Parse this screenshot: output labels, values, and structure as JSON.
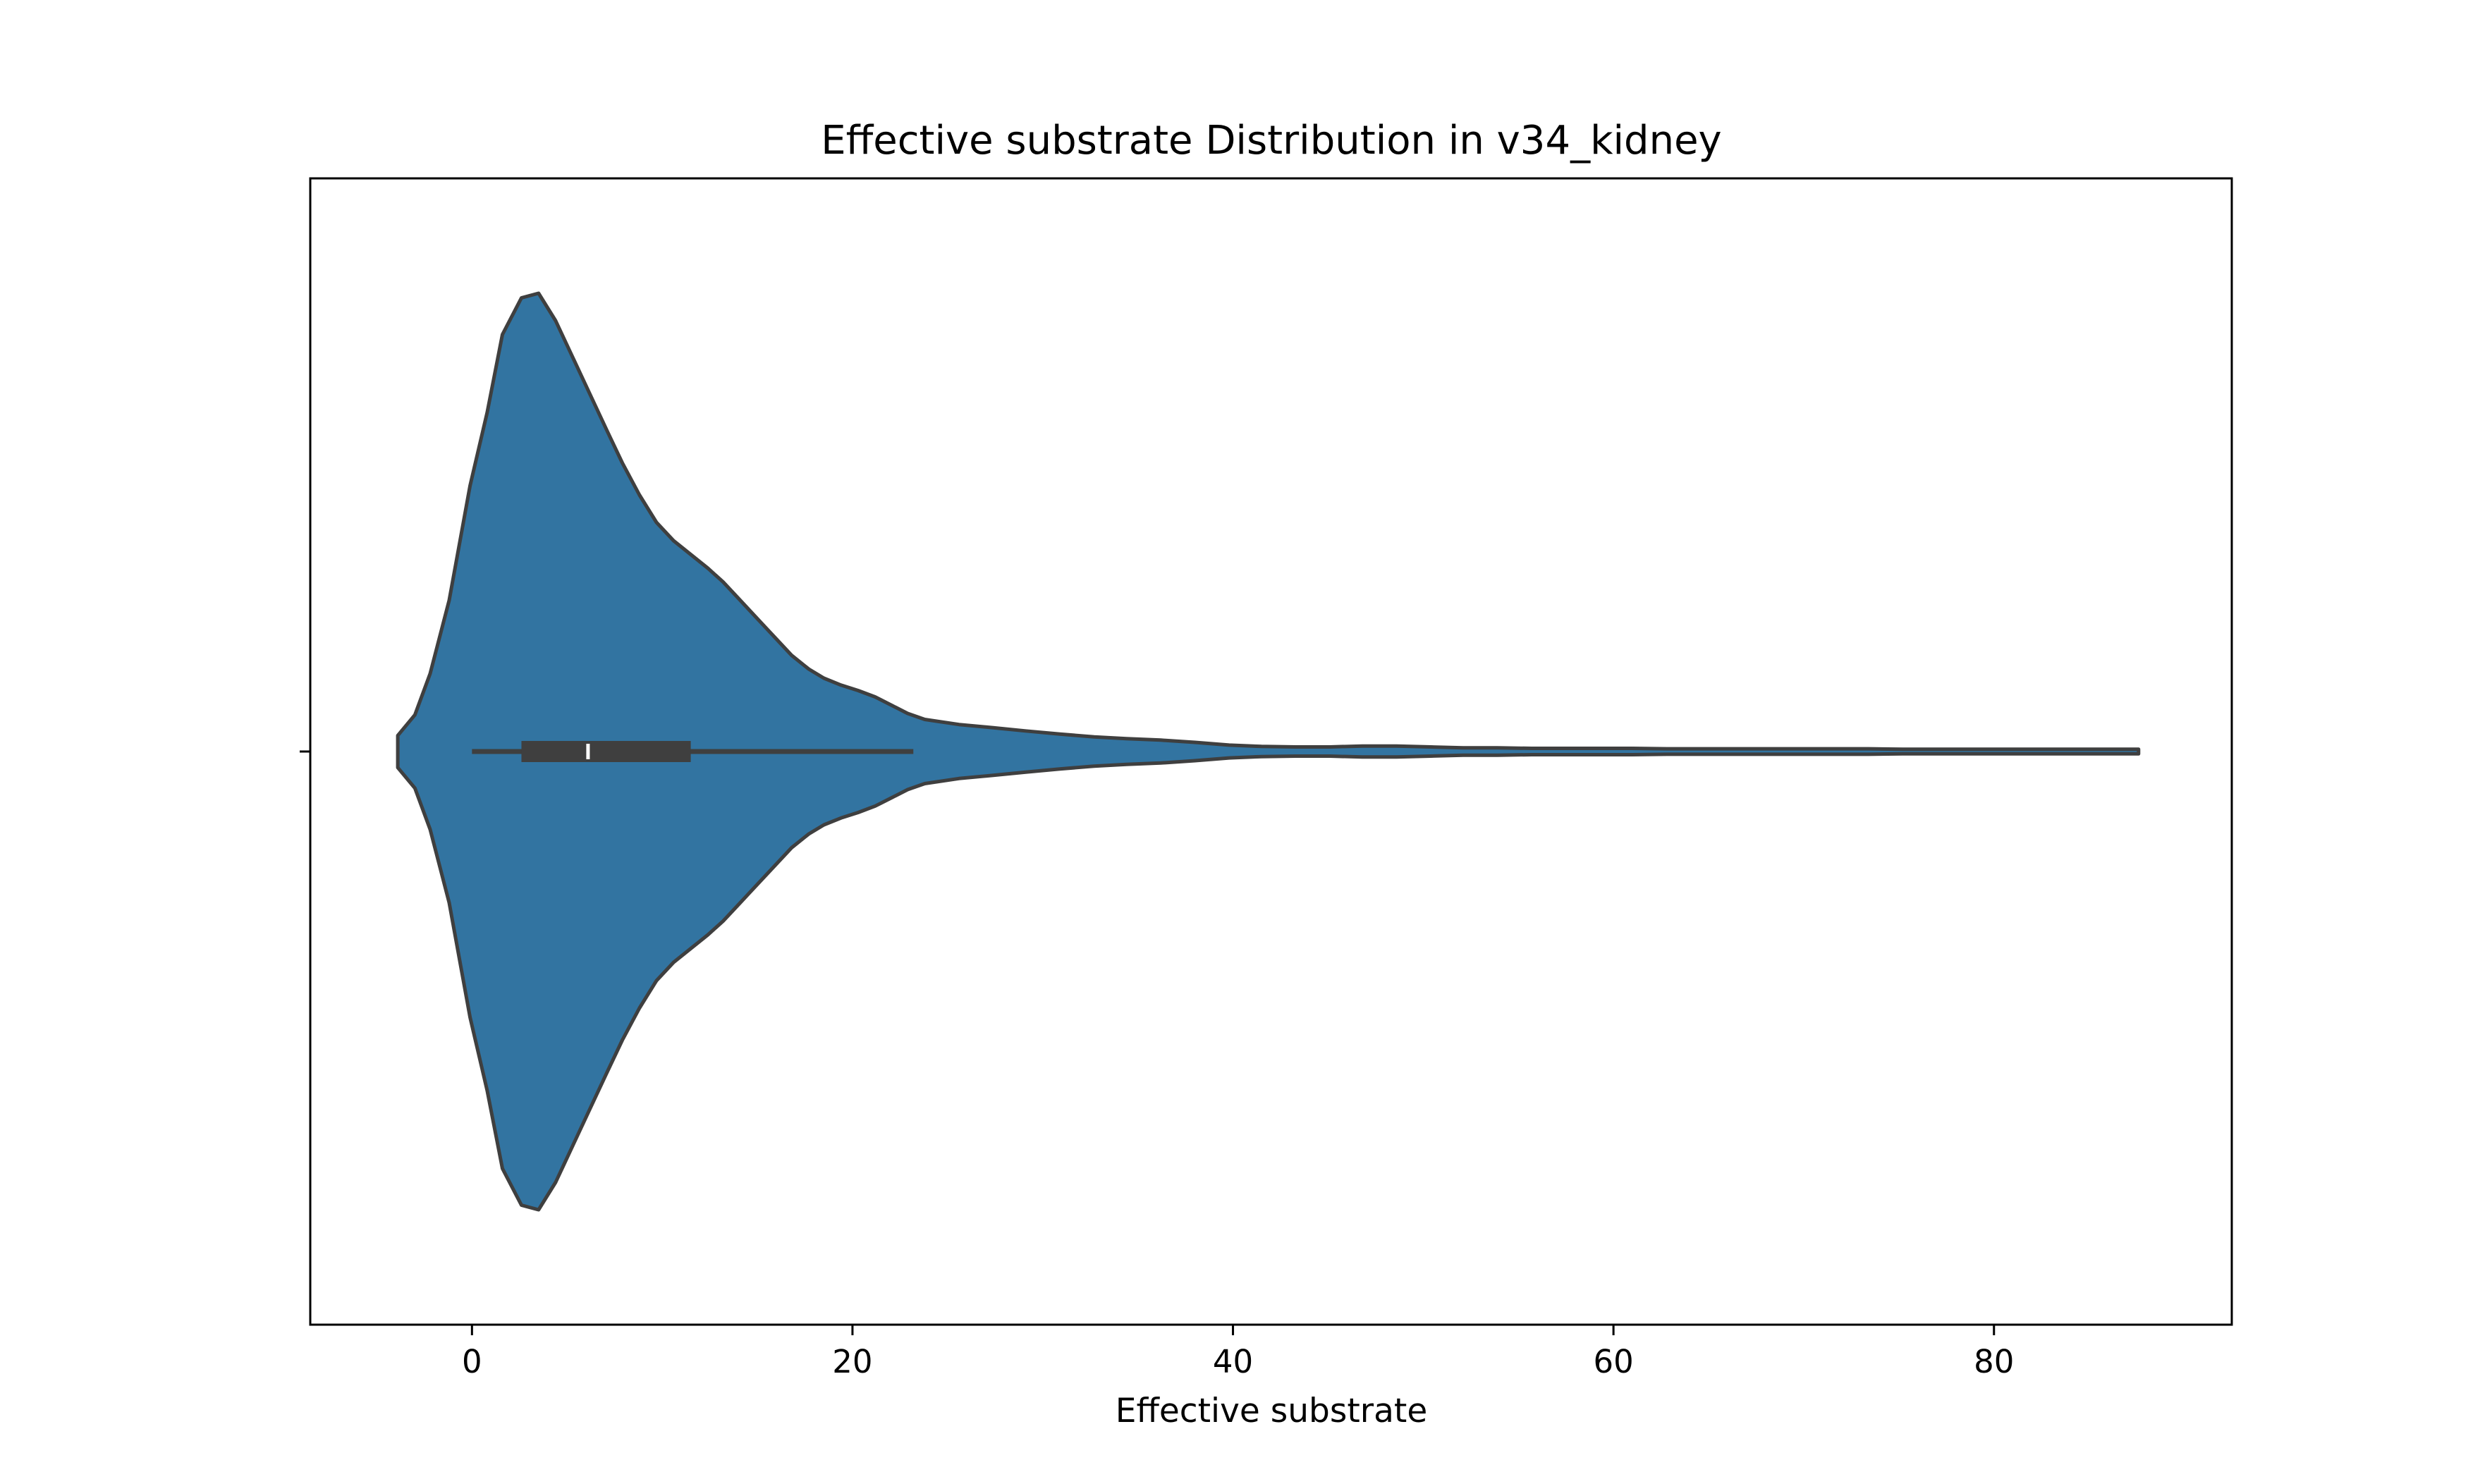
{
  "chart_data": {
    "type": "violin",
    "title": "Effective substrate Distribution in v34_kidney",
    "xlabel": "Effective substrate",
    "ylabel": "",
    "xlim": [
      -8.5,
      92.5
    ],
    "xticks": [
      0,
      20,
      40,
      60,
      80
    ],
    "xtick_labels": [
      "0",
      "20",
      "40",
      "60",
      "80"
    ],
    "grid": false,
    "legend": "none",
    "colors": {
      "fill": "#3274a1",
      "edge": "#3f3f3f",
      "box": "#3f3f3f",
      "median": "#ffffff"
    },
    "box_summary": {
      "whisker_low": 0,
      "q1": 2.6,
      "median": 6.1,
      "q3": 11.5,
      "whisker_high": 23.2
    },
    "density_profile": {
      "x": [
        -3.9,
        -3.0,
        -2.2,
        -1.2,
        -0.1,
        0.8,
        1.6,
        2.6,
        3.5,
        4.4,
        5.3,
        6.2,
        7.1,
        7.9,
        8.8,
        9.7,
        10.6,
        11.5,
        12.4,
        13.2,
        14.1,
        15.0,
        15.9,
        16.8,
        17.7,
        18.5,
        19.4,
        20.3,
        21.2,
        22.1,
        22.9,
        23.8,
        25.6,
        27.4,
        29.1,
        30.9,
        32.7,
        34.4,
        36.2,
        38.0,
        39.8,
        41.5,
        43.3,
        45.1,
        46.8,
        48.6,
        50.4,
        52.1,
        53.9,
        55.7,
        57.5,
        59.2,
        61.0,
        62.8,
        64.5,
        66.3,
        68.1,
        69.9,
        71.6,
        73.4,
        75.2,
        76.9,
        78.7,
        80.5,
        82.2,
        84.0,
        85.8,
        87.6
      ],
      "density": [
        0.035,
        0.08,
        0.17,
        0.33,
        0.58,
        0.74,
        0.91,
        0.99,
        1.0,
        0.94,
        0.86,
        0.78,
        0.7,
        0.63,
        0.56,
        0.5,
        0.46,
        0.43,
        0.4,
        0.37,
        0.33,
        0.29,
        0.25,
        0.21,
        0.18,
        0.16,
        0.145,
        0.133,
        0.119,
        0.1,
        0.083,
        0.07,
        0.059,
        0.052,
        0.045,
        0.038,
        0.032,
        0.028,
        0.025,
        0.02,
        0.014,
        0.011,
        0.01,
        0.01,
        0.012,
        0.012,
        0.01,
        0.008,
        0.008,
        0.007,
        0.007,
        0.007,
        0.007,
        0.006,
        0.006,
        0.006,
        0.006,
        0.006,
        0.006,
        0.006,
        0.005,
        0.005,
        0.005,
        0.005,
        0.005,
        0.005,
        0.005,
        0.005
      ]
    }
  }
}
